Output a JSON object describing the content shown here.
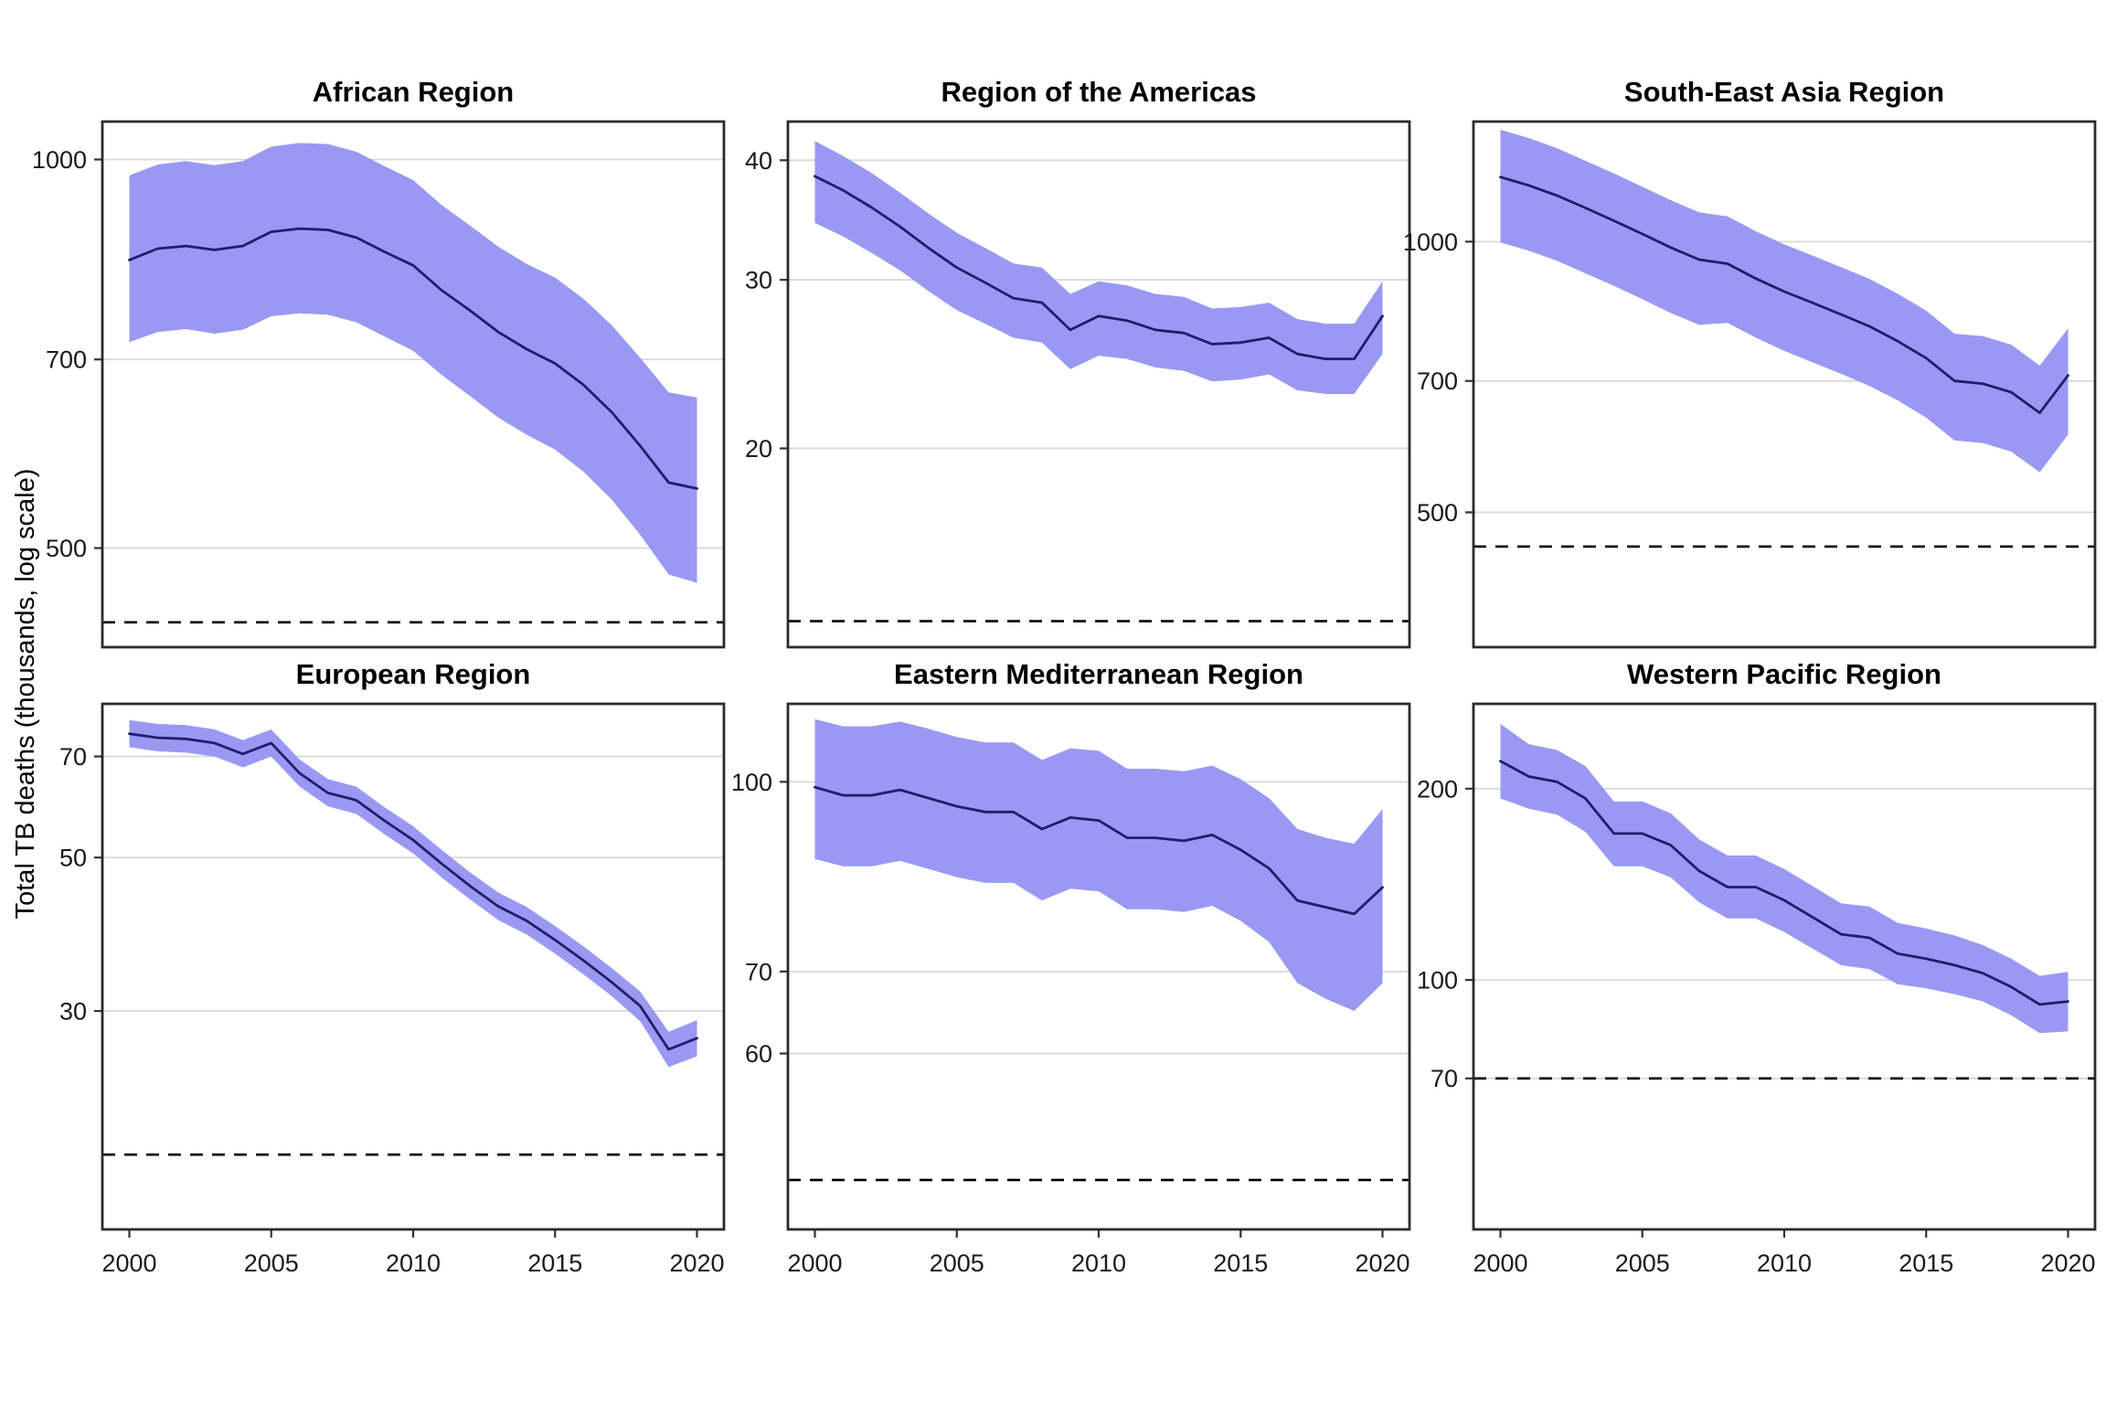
{
  "y_axis_title": "Total TB deaths (thousands, log scale)",
  "x_axis": {
    "ticks": [
      2000,
      2005,
      2010,
      2015,
      2020
    ],
    "range": [
      1999.05,
      2020.95
    ]
  },
  "years": [
    2000,
    2001,
    2002,
    2003,
    2004,
    2005,
    2006,
    2007,
    2008,
    2009,
    2010,
    2011,
    2012,
    2013,
    2014,
    2015,
    2016,
    2017,
    2018,
    2019,
    2020
  ],
  "style": {
    "band_color": "#9999f3",
    "line_color": "#1e1e6b",
    "grid_color": "#d8d8d8",
    "border_color": "#2b2b2b",
    "dashed_color": "#000000",
    "tick_color": "#333333",
    "background": "#ffffff"
  },
  "chart_data": [
    {
      "type": "line",
      "title": "African Region",
      "ylabel": "Total TB deaths (thousands, log scale)",
      "ylim": [
        419,
        1070
      ],
      "yticks": [
        500,
        700,
        1000
      ],
      "target_dashed_line": 438,
      "grid": "horizontal-only",
      "legend": "none",
      "series": [
        {
          "name": "best_estimate",
          "values": [
            836,
            853,
            857,
            851,
            857,
            879,
            884,
            882,
            870,
            848,
            828,
            792,
            764,
            735,
            713,
            695,
            669,
            637,
            600,
            562,
            556
          ]
        },
        {
          "name": "lower_bound",
          "values": [
            722,
            735,
            739,
            733,
            738,
            756,
            760,
            758,
            748,
            729,
            711,
            681,
            656,
            631,
            612,
            596,
            573,
            545,
            512,
            477,
            470
          ]
        },
        {
          "name": "upper_bound",
          "values": [
            972,
            991,
            997,
            990,
            997,
            1023,
            1030,
            1028,
            1014,
            988,
            964,
            922,
            889,
            856,
            830,
            810,
            780,
            744,
            702,
            660,
            654
          ]
        }
      ]
    },
    {
      "type": "line",
      "title": "Region of the Americas",
      "ylabel": "Total TB deaths (thousands, log scale)",
      "ylim": [
        12.4,
        43.9
      ],
      "yticks": [
        20,
        30,
        40
      ],
      "target_dashed_line": 13.2,
      "grid": "horizontal-only",
      "legend": "none",
      "series": [
        {
          "name": "best_estimate",
          "values": [
            38.5,
            37.2,
            35.7,
            34.1,
            32.4,
            30.9,
            29.8,
            28.7,
            28.4,
            26.6,
            27.5,
            27.2,
            26.6,
            26.4,
            25.7,
            25.8,
            26.1,
            25.1,
            24.8,
            24.8,
            27.5
          ]
        },
        {
          "name": "lower_bound",
          "values": [
            34.4,
            33.3,
            32.0,
            30.7,
            29.2,
            27.9,
            27.0,
            26.1,
            25.8,
            24.2,
            25.0,
            24.8,
            24.3,
            24.1,
            23.5,
            23.6,
            23.9,
            23.0,
            22.8,
            22.8,
            25.1
          ]
        },
        {
          "name": "upper_bound",
          "values": [
            41.9,
            40.4,
            38.8,
            37.0,
            35.2,
            33.6,
            32.4,
            31.2,
            30.9,
            29.0,
            29.9,
            29.6,
            29.0,
            28.8,
            28.0,
            28.1,
            28.4,
            27.3,
            27.0,
            27.0,
            29.9
          ]
        }
      ]
    },
    {
      "type": "line",
      "title": "South-East Asia Region",
      "ylabel": "Total TB deaths (thousands, log scale)",
      "ylim": [
        354,
        1360
      ],
      "yticks": [
        500,
        700,
        1000
      ],
      "target_dashed_line": 458,
      "grid": "horizontal-only",
      "legend": "none",
      "series": [
        {
          "name": "best_estimate",
          "values": [
            1180,
            1155,
            1125,
            1090,
            1055,
            1020,
            985,
            955,
            945,
            910,
            880,
            855,
            830,
            805,
            775,
            742,
            700,
            695,
            680,
            645,
            710
          ]
        },
        {
          "name": "lower_bound",
          "values": [
            998,
            977,
            952,
            922,
            893,
            863,
            833,
            808,
            812,
            782,
            756,
            734,
            713,
            691,
            666,
            637,
            601,
            597,
            584,
            554,
            610
          ]
        },
        {
          "name": "upper_bound",
          "values": [
            1332,
            1304,
            1270,
            1230,
            1191,
            1151,
            1112,
            1078,
            1067,
            1027,
            993,
            965,
            937,
            909,
            875,
            838,
            790,
            785,
            768,
            728,
            801
          ]
        }
      ]
    },
    {
      "type": "line",
      "title": "European Region",
      "ylabel": "Total TB deaths (thousands, log scale)",
      "ylim": [
        14.5,
        83.4
      ],
      "yticks": [
        30,
        50,
        70
      ],
      "target_dashed_line": 18.6,
      "grid": "horizontal-only",
      "legend": "none",
      "series": [
        {
          "name": "best_estimate",
          "values": [
            75.5,
            74.5,
            74.2,
            73.2,
            70.6,
            73.2,
            66.2,
            62.0,
            60.5,
            56.5,
            53.0,
            49.0,
            45.5,
            42.5,
            40.5,
            38.0,
            35.5,
            33.0,
            30.5,
            26.4,
            27.4
          ]
        },
        {
          "name": "lower_bound",
          "values": [
            72.2,
            71.2,
            70.9,
            70.0,
            67.5,
            70.0,
            63.3,
            59.3,
            57.8,
            54.0,
            50.7,
            46.8,
            43.5,
            40.6,
            38.7,
            36.3,
            33.9,
            31.5,
            29.0,
            24.9,
            25.8
          ]
        },
        {
          "name": "upper_bound",
          "values": [
            79.0,
            78.0,
            77.7,
            76.6,
            73.9,
            76.6,
            69.3,
            64.9,
            63.3,
            59.1,
            55.5,
            51.3,
            47.6,
            44.5,
            42.4,
            39.8,
            37.2,
            34.6,
            32.0,
            28.0,
            29.1
          ]
        }
      ]
    },
    {
      "type": "line",
      "title": "Eastern Mediterranean Region",
      "ylabel": "Total TB deaths (thousands, log scale)",
      "ylim": [
        43.1,
        115.8
      ],
      "yticks": [
        60,
        70,
        100
      ],
      "target_dashed_line": 47.3,
      "grid": "horizontal-only",
      "legend": "none",
      "series": [
        {
          "name": "best_estimate",
          "values": [
            99,
            97.5,
            97.5,
            98.5,
            97,
            95.5,
            94.5,
            94.5,
            91.5,
            93.5,
            93,
            90,
            90,
            89.5,
            90.5,
            88,
            85,
            80,
            79,
            78,
            82
          ]
        },
        {
          "name": "lower_bound",
          "values": [
            86.5,
            85.3,
            85.3,
            86.2,
            84.9,
            83.6,
            82.7,
            82.7,
            80.0,
            81.8,
            81.4,
            78.7,
            78.7,
            78.3,
            79.2,
            77.0,
            74.0,
            68.5,
            66.5,
            65.0,
            68.5
          ]
        },
        {
          "name": "upper_bound",
          "values": [
            112.5,
            111.0,
            111.0,
            112.0,
            110.5,
            108.8,
            107.7,
            107.7,
            104.2,
            106.5,
            106.0,
            102.5,
            102.5,
            102.0,
            103.1,
            100.5,
            97.0,
            91.5,
            90.0,
            89.0,
            95.0
          ]
        }
      ]
    },
    {
      "type": "line",
      "title": "Western Pacific Region",
      "ylabel": "Total TB deaths (thousands, log scale)",
      "ylim": [
        40.5,
        272
      ],
      "yticks": [
        70,
        100,
        200
      ],
      "target_dashed_line": 70,
      "grid": "horizontal-only",
      "legend": "none",
      "series": [
        {
          "name": "best_estimate",
          "values": [
            221,
            209,
            205,
            193,
            170,
            170,
            163,
            148.5,
            140,
            140,
            133.5,
            125.5,
            118,
            116.5,
            110,
            108,
            105.5,
            102.5,
            97.5,
            91.5,
            92.5
          ]
        },
        {
          "name": "lower_bound",
          "values": [
            193,
            186,
            182,
            171,
            151,
            151,
            145,
            132.5,
            125,
            125,
            119,
            112,
            105.5,
            104,
            98.5,
            97,
            95,
            92.5,
            88,
            82.5,
            83
          ]
        },
        {
          "name": "upper_bound",
          "values": [
            253,
            235,
            230,
            217,
            191,
            191,
            183,
            166.5,
            157,
            157,
            149.5,
            140.5,
            132,
            130.5,
            123,
            120.5,
            117.5,
            113.5,
            108,
            101.5,
            103
          ]
        }
      ]
    }
  ]
}
